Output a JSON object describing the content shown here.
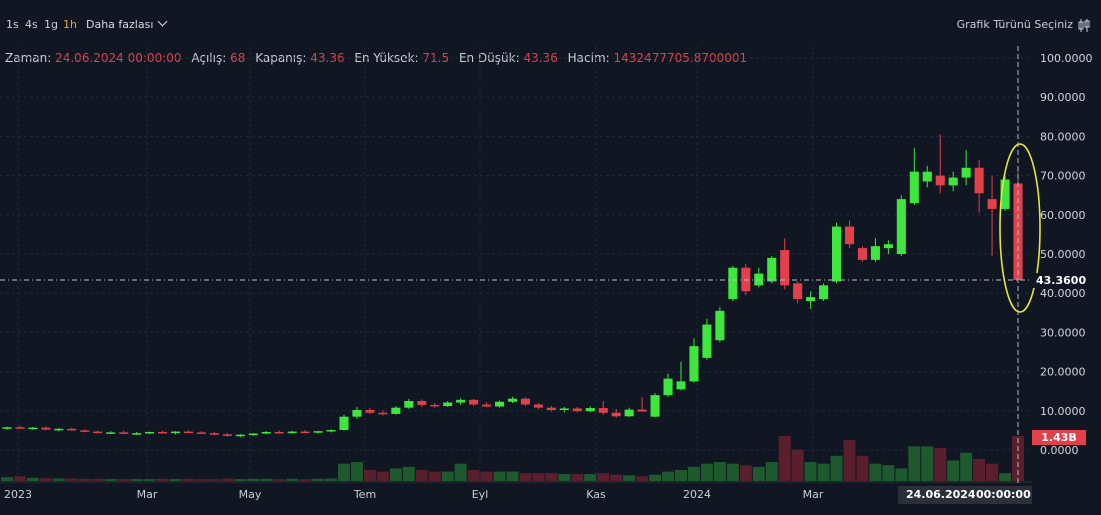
{
  "toolbar": {
    "timeframes": [
      "1s",
      "4s",
      "1g",
      "1h"
    ],
    "active_timeframe": "1h",
    "more_label": "Daha fazlası",
    "chart_type_label": "Grafik Türünü Seçiniz"
  },
  "info": {
    "time_label": "Zaman:",
    "time_value": "24.06.2024 00:00:00",
    "open_label": "Açılış:",
    "open_value": "68",
    "close_label": "Kapanış:",
    "close_value": "43.36",
    "high_label": "En Yüksek:",
    "high_value": "71.5",
    "low_label": "En Düşük:",
    "low_value": "43.36",
    "volume_label": "Hacim:",
    "volume_value": "1432477705.8700001"
  },
  "crosshair": {
    "price_label": "43.3600",
    "volume_label": "1.43B",
    "date_label": "24.06.2024",
    "time_label": "00:00:00"
  },
  "colors": {
    "background": "#101722",
    "up": "#3ee63e",
    "down": "#e2414b",
    "highlight_ellipse": "#e5e53a"
  },
  "chart_data": {
    "type": "candlestick",
    "y_axis_ticks": [
      "100.0000",
      "90.0000",
      "80.0000",
      "70.0000",
      "60.0000",
      "50.0000",
      "40.0000",
      "30.0000",
      "20.0000",
      "10.0000",
      "0.0000"
    ],
    "ylim": [
      0,
      100
    ],
    "x_axis_labels": [
      "2023",
      "Mar",
      "May",
      "Tem",
      "Eyl",
      "Kas",
      "2024",
      "Mar"
    ],
    "candles": [
      {
        "o": 5.5,
        "h": 6,
        "l": 5.2,
        "c": 5.8,
        "v": 0.12
      },
      {
        "o": 5.8,
        "h": 6.2,
        "l": 5.3,
        "c": 5.5,
        "v": 0.15
      },
      {
        "o": 5.5,
        "h": 5.9,
        "l": 5.1,
        "c": 5.7,
        "v": 0.1
      },
      {
        "o": 5.7,
        "h": 6,
        "l": 5.0,
        "c": 5.2,
        "v": 0.09
      },
      {
        "o": 5.2,
        "h": 5.6,
        "l": 4.8,
        "c": 5.4,
        "v": 0.08
      },
      {
        "o": 5.4,
        "h": 5.7,
        "l": 4.9,
        "c": 5.0,
        "v": 0.08
      },
      {
        "o": 5.0,
        "h": 5.3,
        "l": 4.5,
        "c": 4.7,
        "v": 0.07
      },
      {
        "o": 4.7,
        "h": 5.0,
        "l": 4.2,
        "c": 4.4,
        "v": 0.07
      },
      {
        "o": 4.4,
        "h": 4.8,
        "l": 4.1,
        "c": 4.5,
        "v": 0.06
      },
      {
        "o": 4.5,
        "h": 4.9,
        "l": 4.0,
        "c": 4.2,
        "v": 0.06
      },
      {
        "o": 4.2,
        "h": 4.6,
        "l": 3.9,
        "c": 4.3,
        "v": 0.06
      },
      {
        "o": 4.3,
        "h": 4.7,
        "l": 4.0,
        "c": 4.6,
        "v": 0.06
      },
      {
        "o": 4.6,
        "h": 4.9,
        "l": 4.2,
        "c": 4.4,
        "v": 0.07
      },
      {
        "o": 4.4,
        "h": 4.8,
        "l": 4.0,
        "c": 4.7,
        "v": 0.06
      },
      {
        "o": 4.7,
        "h": 5.0,
        "l": 4.3,
        "c": 4.5,
        "v": 0.07
      },
      {
        "o": 4.5,
        "h": 4.8,
        "l": 4.1,
        "c": 4.3,
        "v": 0.06
      },
      {
        "o": 4.3,
        "h": 4.6,
        "l": 3.8,
        "c": 4.0,
        "v": 0.06
      },
      {
        "o": 4.0,
        "h": 4.3,
        "l": 3.4,
        "c": 3.6,
        "v": 0.08
      },
      {
        "o": 3.6,
        "h": 4.1,
        "l": 3.3,
        "c": 3.9,
        "v": 0.06
      },
      {
        "o": 3.9,
        "h": 4.3,
        "l": 3.6,
        "c": 4.2,
        "v": 0.07
      },
      {
        "o": 4.2,
        "h": 4.8,
        "l": 4.0,
        "c": 4.6,
        "v": 0.07
      },
      {
        "o": 4.6,
        "h": 5.0,
        "l": 4.2,
        "c": 4.4,
        "v": 0.06
      },
      {
        "o": 4.4,
        "h": 4.9,
        "l": 4.1,
        "c": 4.7,
        "v": 0.07
      },
      {
        "o": 4.7,
        "h": 5.1,
        "l": 4.3,
        "c": 4.5,
        "v": 0.06
      },
      {
        "o": 4.5,
        "h": 4.9,
        "l": 4.2,
        "c": 4.8,
        "v": 0.07
      },
      {
        "o": 4.8,
        "h": 5.3,
        "l": 4.5,
        "c": 5.1,
        "v": 0.08
      },
      {
        "o": 5.1,
        "h": 9.0,
        "l": 4.9,
        "c": 8.5,
        "v": 0.55
      },
      {
        "o": 8.5,
        "h": 11.0,
        "l": 8.0,
        "c": 10.2,
        "v": 0.6
      },
      {
        "o": 10.2,
        "h": 10.8,
        "l": 9.1,
        "c": 9.5,
        "v": 0.35
      },
      {
        "o": 9.5,
        "h": 10.2,
        "l": 8.8,
        "c": 9.2,
        "v": 0.3
      },
      {
        "o": 9.2,
        "h": 11.2,
        "l": 9.0,
        "c": 10.8,
        "v": 0.4
      },
      {
        "o": 10.8,
        "h": 13.0,
        "l": 10.5,
        "c": 12.5,
        "v": 0.45
      },
      {
        "o": 12.5,
        "h": 12.9,
        "l": 11.0,
        "c": 11.5,
        "v": 0.35
      },
      {
        "o": 11.5,
        "h": 12.0,
        "l": 10.8,
        "c": 11.2,
        "v": 0.3
      },
      {
        "o": 11.2,
        "h": 12.5,
        "l": 11.0,
        "c": 12.1,
        "v": 0.3
      },
      {
        "o": 12.1,
        "h": 13.2,
        "l": 11.5,
        "c": 12.8,
        "v": 0.55
      },
      {
        "o": 12.8,
        "h": 13.0,
        "l": 11.2,
        "c": 11.6,
        "v": 0.35
      },
      {
        "o": 11.6,
        "h": 12.2,
        "l": 10.9,
        "c": 11.1,
        "v": 0.3
      },
      {
        "o": 11.1,
        "h": 12.6,
        "l": 10.9,
        "c": 12.3,
        "v": 0.3
      },
      {
        "o": 12.3,
        "h": 13.6,
        "l": 12.0,
        "c": 13.1,
        "v": 0.3
      },
      {
        "o": 13.1,
        "h": 13.4,
        "l": 11.2,
        "c": 11.6,
        "v": 0.25
      },
      {
        "o": 11.6,
        "h": 12.0,
        "l": 10.4,
        "c": 10.8,
        "v": 0.25
      },
      {
        "o": 10.8,
        "h": 11.2,
        "l": 9.8,
        "c": 10.2,
        "v": 0.25
      },
      {
        "o": 10.2,
        "h": 11.0,
        "l": 9.6,
        "c": 10.6,
        "v": 0.22
      },
      {
        "o": 10.6,
        "h": 11.0,
        "l": 9.6,
        "c": 9.9,
        "v": 0.22
      },
      {
        "o": 9.9,
        "h": 11.1,
        "l": 9.6,
        "c": 10.7,
        "v": 0.22
      },
      {
        "o": 10.7,
        "h": 12.5,
        "l": 9.0,
        "c": 9.5,
        "v": 0.25
      },
      {
        "o": 9.5,
        "h": 10.5,
        "l": 8.2,
        "c": 8.6,
        "v": 0.2
      },
      {
        "o": 8.6,
        "h": 10.8,
        "l": 8.4,
        "c": 10.3,
        "v": 0.18
      },
      {
        "o": 10.3,
        "h": 13.5,
        "l": 10.0,
        "c": 9.8,
        "v": 0.15
      },
      {
        "o": 8.5,
        "h": 14.5,
        "l": 8.3,
        "c": 14.0,
        "v": 0.2
      },
      {
        "o": 14.0,
        "h": 19.5,
        "l": 13.5,
        "c": 18.2,
        "v": 0.3
      },
      {
        "o": 15.5,
        "h": 22.5,
        "l": 15.2,
        "c": 17.5,
        "v": 0.35
      },
      {
        "o": 17.5,
        "h": 28.5,
        "l": 17.2,
        "c": 26.5,
        "v": 0.45
      },
      {
        "o": 23.5,
        "h": 33.5,
        "l": 23.0,
        "c": 32.0,
        "v": 0.55
      },
      {
        "o": 28.0,
        "h": 36.5,
        "l": 27.5,
        "c": 35.5,
        "v": 0.6
      },
      {
        "o": 38.5,
        "h": 47.0,
        "l": 38.0,
        "c": 46.5,
        "v": 0.55
      },
      {
        "o": 46.5,
        "h": 47.5,
        "l": 39.5,
        "c": 40.5,
        "v": 0.5
      },
      {
        "o": 42.0,
        "h": 46.5,
        "l": 41.5,
        "c": 45.0,
        "v": 0.45
      },
      {
        "o": 43.0,
        "h": 49.5,
        "l": 42.5,
        "c": 49.0,
        "v": 0.6
      },
      {
        "o": 51.0,
        "h": 54.0,
        "l": 41.0,
        "c": 42.0,
        "v": 1.43
      },
      {
        "o": 42.5,
        "h": 43.0,
        "l": 37.5,
        "c": 38.5,
        "v": 1.0
      },
      {
        "o": 38.0,
        "h": 40.5,
        "l": 36.0,
        "c": 39.0,
        "v": 0.6
      },
      {
        "o": 38.5,
        "h": 42.5,
        "l": 38.0,
        "c": 42.0,
        "v": 0.55
      },
      {
        "o": 43.0,
        "h": 58.0,
        "l": 42.5,
        "c": 57.0,
        "v": 0.8
      },
      {
        "o": 57.0,
        "h": 58.5,
        "l": 51.5,
        "c": 52.5,
        "v": 1.3
      },
      {
        "o": 51.5,
        "h": 52.0,
        "l": 48.0,
        "c": 48.5,
        "v": 0.8
      },
      {
        "o": 48.5,
        "h": 54.0,
        "l": 48.0,
        "c": 52.0,
        "v": 0.55
      },
      {
        "o": 51.5,
        "h": 53.5,
        "l": 50.0,
        "c": 52.5,
        "v": 0.5
      },
      {
        "o": 50.0,
        "h": 65.0,
        "l": 49.5,
        "c": 64.0,
        "v": 0.4
      },
      {
        "o": 63.0,
        "h": 77.0,
        "l": 62.5,
        "c": 71.0,
        "v": 1.1
      },
      {
        "o": 68.5,
        "h": 72.5,
        "l": 67.0,
        "c": 71.0,
        "v": 1.1
      },
      {
        "o": 70.0,
        "h": 80.5,
        "l": 65.5,
        "c": 67.5,
        "v": 1.05
      },
      {
        "o": 67.5,
        "h": 71.0,
        "l": 66.0,
        "c": 69.5,
        "v": 0.65
      },
      {
        "o": 69.5,
        "h": 76.5,
        "l": 67.5,
        "c": 72.0,
        "v": 0.9
      },
      {
        "o": 72.0,
        "h": 74.0,
        "l": 60.5,
        "c": 65.5,
        "v": 0.7
      },
      {
        "o": 64.0,
        "h": 70.0,
        "l": 49.5,
        "c": 61.5,
        "v": 0.55
      },
      {
        "o": 61.5,
        "h": 70.0,
        "l": 61.0,
        "c": 69.0,
        "v": 0.25
      },
      {
        "o": 68.0,
        "h": 71.5,
        "l": 43.36,
        "c": 43.36,
        "v": 1.43
      }
    ]
  }
}
